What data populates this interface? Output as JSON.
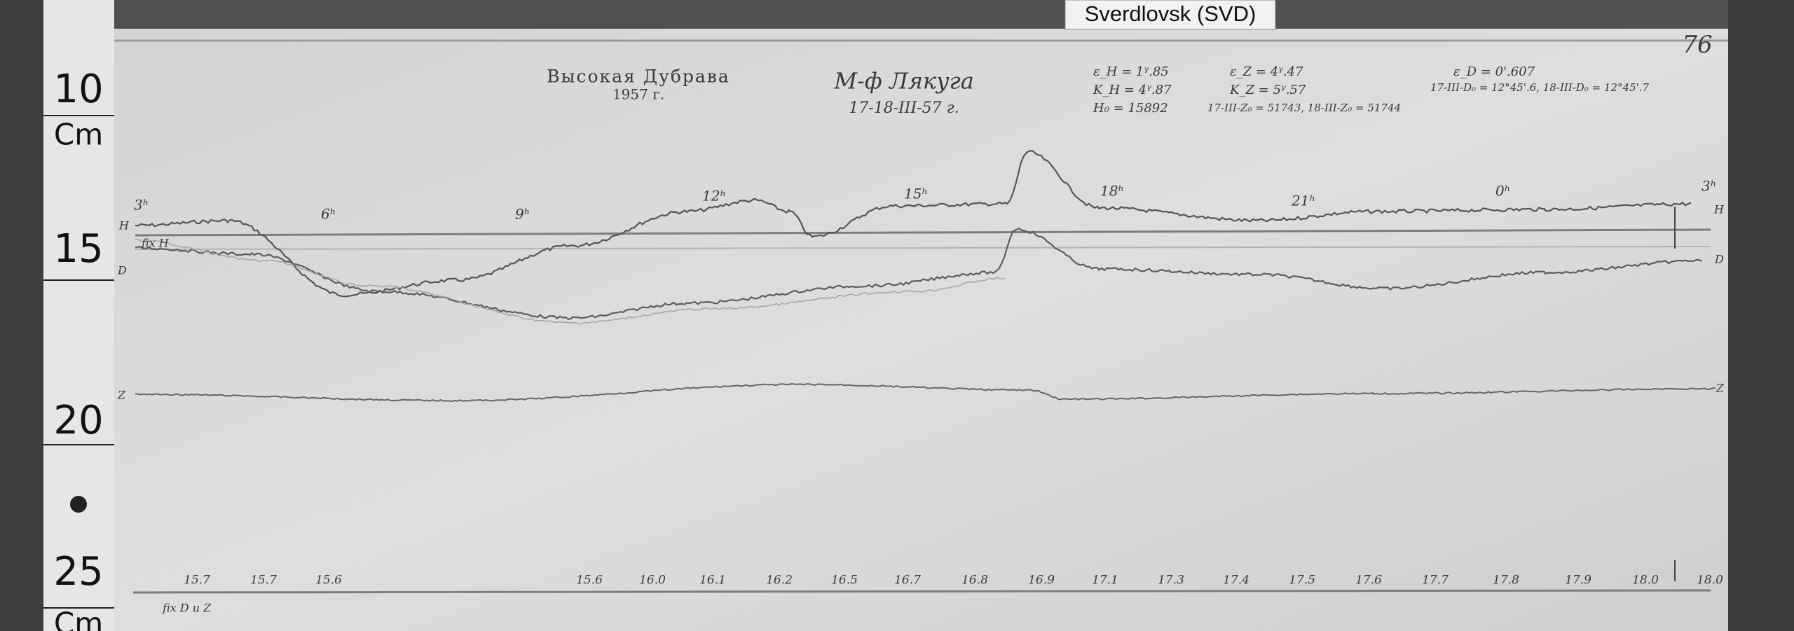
{
  "tag": "Sverdlovsk (SVD)",
  "sheet_number": "76",
  "ruler": [
    "10",
    "Cm",
    "15",
    "20",
    "25",
    "Cm"
  ],
  "header": {
    "station": "Высокая Дубрава",
    "year": "1957 г.",
    "magnetometer": "М-ф Лякуга",
    "dates": "17-18-III-57 г."
  },
  "constants": [
    "ε_H = 1ᵞ.85",
    "K_H = 4ᵞ.87",
    "H₀ = 15892",
    "ε_Z = 4ᵞ.47",
    "K_Z = 5ᵞ.57",
    "17-III-Z₀ = 51743,  18-III-Z₀ = 51744",
    "ε_D = 0'.607",
    "17-III-D₀ = 12°45'.6,  18-III-D₀ = 12°45'.7"
  ],
  "hour_marks": [
    "3ʰ",
    "6ʰ",
    "9ʰ",
    "12ʰ",
    "15ʰ",
    "18ʰ",
    "21ʰ",
    "0ʰ",
    "3ʰ"
  ],
  "trace_labels": [
    "H",
    "H",
    "fix H",
    "D",
    "D",
    "Z",
    "Z",
    "fix D и Z"
  ],
  "temperatures": [
    "15.7",
    "15.7",
    "15.6",
    "15.6",
    "16.0",
    "16.1",
    "16.2",
    "16.5",
    "16.7",
    "16.8",
    "16.9",
    "17.1",
    "17.3",
    "17.4",
    "17.5",
    "17.6",
    "17.7",
    "17.8",
    "17.9",
    "18.0",
    "18.0"
  ]
}
